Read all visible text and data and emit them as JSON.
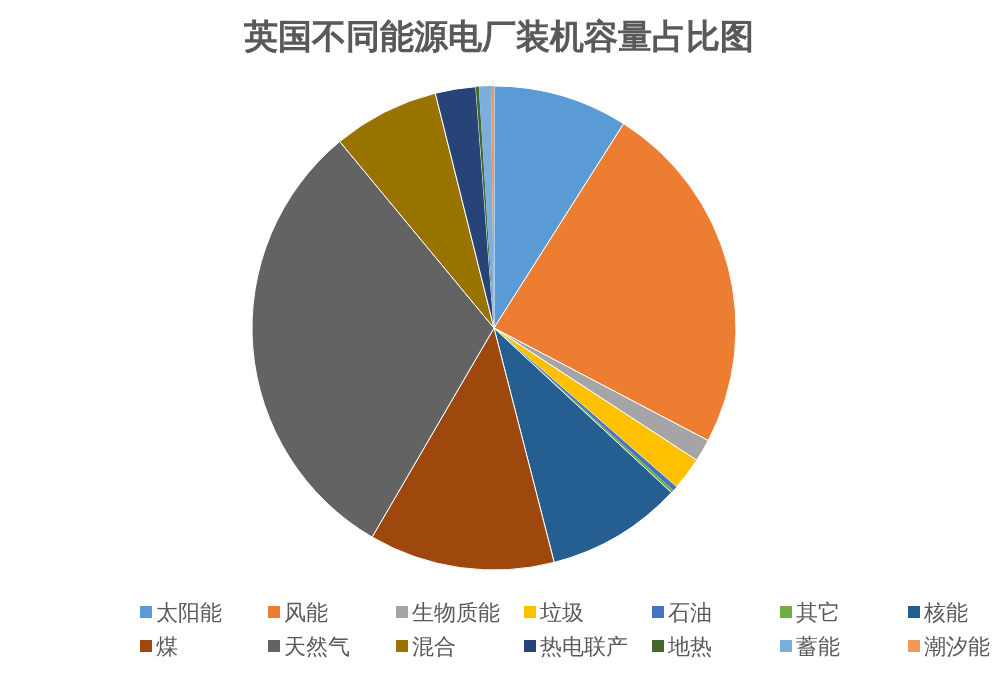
{
  "chart_data": {
    "type": "pie",
    "title": "英国不同能源电厂装机容量占比图",
    "categories": [
      "太阳能",
      "风能",
      "生物质能",
      "垃圾",
      "石油",
      "其它",
      "核能",
      "煤",
      "天然气",
      "混合",
      "热电联产",
      "地热",
      "蓄能",
      "潮汐能"
    ],
    "values": [
      9.0,
      23.7,
      1.5,
      2.2,
      0.3,
      0.2,
      9.1,
      12.4,
      30.6,
      7.1,
      2.7,
      0.2,
      0.8,
      0.2
    ],
    "colors": [
      "#5b9bd5",
      "#ed7d31",
      "#a5a5a5",
      "#ffc000",
      "#4472c4",
      "#70ad47",
      "#255e91",
      "#9e480e",
      "#636363",
      "#997300",
      "#264478",
      "#43682b",
      "#7cafdd",
      "#f1975a"
    ],
    "legend": "bottom"
  }
}
